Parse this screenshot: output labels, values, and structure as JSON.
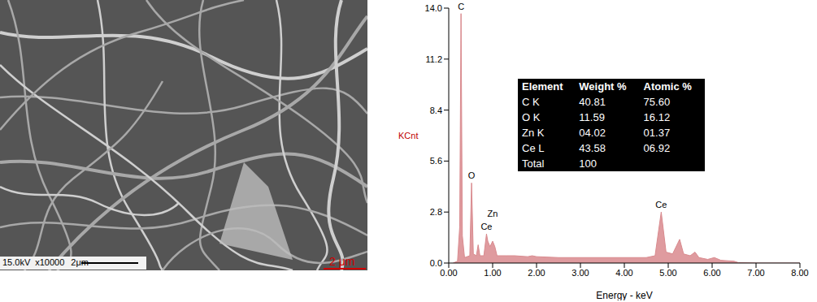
{
  "chart_data": {
    "type": "area",
    "x_label": "Energy - keV",
    "y_label": "KCnt",
    "color": "#d98a8e",
    "xlim": [
      0,
      8
    ],
    "xticks": [
      {
        "value": 0,
        "label": "0.00"
      },
      {
        "value": 1,
        "label": "1.00"
      },
      {
        "value": 2,
        "label": "2.00"
      },
      {
        "value": 3,
        "label": "3.00"
      },
      {
        "value": 4,
        "label": "4.00"
      },
      {
        "value": 5,
        "label": "5.00"
      },
      {
        "value": 6,
        "label": "6.00"
      },
      {
        "value": 7,
        "label": "7.00"
      },
      {
        "value": 8,
        "label": "8.00"
      }
    ],
    "ylim": [
      0,
      14
    ],
    "yticks": [
      {
        "value": 0,
        "label": "0.0"
      },
      {
        "value": 2.8,
        "label": "2.8"
      },
      {
        "value": 5.6,
        "label": "5.6"
      },
      {
        "value": 8.4,
        "label": "8.4"
      },
      {
        "value": 11.2,
        "label": "11.2"
      },
      {
        "value": 14,
        "label": "14.0"
      }
    ],
    "x": [
      0.1,
      0.2,
      0.25,
      0.28,
      0.31,
      0.36,
      0.48,
      0.52,
      0.56,
      0.63,
      0.67,
      0.71,
      0.8,
      0.86,
      0.89,
      0.94,
      1.0,
      1.05,
      1.1,
      1.3,
      1.5,
      1.8,
      1.9,
      2.0,
      2.5,
      3.0,
      3.5,
      4.0,
      4.5,
      4.7,
      4.84,
      4.95,
      5.1,
      5.26,
      5.35,
      5.5,
      5.61,
      5.7,
      5.9,
      6.05,
      6.2,
      6.5,
      6.6,
      7.0,
      8.0
    ],
    "values": [
      0,
      0.1,
      2,
      13.7,
      1.5,
      0.3,
      0.4,
      4.4,
      0.5,
      0.4,
      1.0,
      0.4,
      0.4,
      1.6,
      1.2,
      0.9,
      1.2,
      0.9,
      0.4,
      0.4,
      0.4,
      0.35,
      0.4,
      0.35,
      0.3,
      0.3,
      0.3,
      0.3,
      0.3,
      0.4,
      2.8,
      0.6,
      0.5,
      1.3,
      0.5,
      0.4,
      0.6,
      0.3,
      0.2,
      0.3,
      0.15,
      0.1,
      0.02,
      0,
      0
    ],
    "annotations": [
      {
        "text": "C",
        "x": 0.28,
        "y": 13.7
      },
      {
        "text": "O",
        "x": 0.52,
        "y": 4.4
      },
      {
        "text": "Ce",
        "x": 0.86,
        "y": 1.6
      },
      {
        "text": "Zn",
        "x": 1.0,
        "y": 2.3
      },
      {
        "text": "Ce",
        "x": 4.84,
        "y": 2.8
      }
    ]
  },
  "table": {
    "header": [
      "Element",
      "Weight %",
      "Atomic %"
    ],
    "rows": [
      [
        "C K",
        "40.81",
        "75.60"
      ],
      [
        "O K",
        "11.59",
        "16.12"
      ],
      [
        "Zn K",
        "04.02",
        "01.37"
      ],
      [
        "Ce L",
        "43.58",
        "06.92"
      ],
      [
        "Total",
        "100"
      ]
    ]
  },
  "sem_image": {
    "info": [
      "15.0kV",
      "x10000",
      "2μm"
    ],
    "scale_label": "2 μm"
  }
}
